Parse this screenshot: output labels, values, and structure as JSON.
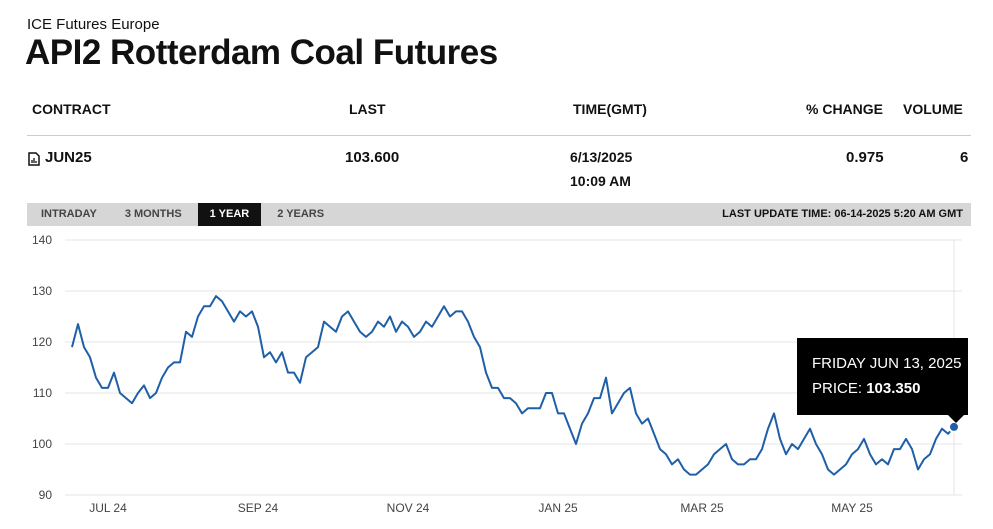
{
  "header": {
    "exchange": "ICE Futures Europe",
    "title": "API2 Rotterdam Coal Futures"
  },
  "table": {
    "columns": [
      "CONTRACT",
      "LAST",
      "TIME(GMT)",
      "% CHANGE",
      "VOLUME"
    ],
    "rows": [
      [
        "JUN25",
        "103.600",
        "6/13/2025",
        "10:09 AM",
        "0.975",
        "6"
      ]
    ]
  },
  "tabs": [
    "INTRADAY",
    "3 MONTHS",
    "1 YEAR",
    "2 YEARS"
  ],
  "active_tab": "1 YEAR",
  "last_update": "LAST UPDATE TIME: 06-14-2025 5:20 AM GMT",
  "tooltip": {
    "date": "FRIDAY JUN 13, 2025",
    "label": "PRICE:",
    "price": "103.350"
  },
  "chart_data": {
    "type": "line",
    "color": "#1f5fa8",
    "grid": true,
    "ylim": [
      90,
      140
    ],
    "yticks": [
      90,
      100,
      110,
      120,
      130,
      140
    ],
    "categories": [
      null,
      null,
      null,
      null,
      null,
      null,
      "JUL 24",
      null,
      null,
      null,
      null,
      null,
      null,
      null,
      null,
      null,
      null,
      null,
      null,
      null,
      null,
      null,
      null,
      null,
      null,
      null,
      null,
      null,
      null,
      null,
      null,
      "SEP 24",
      null,
      null,
      null,
      null,
      null,
      null,
      null,
      null,
      null,
      null,
      null,
      null,
      null,
      null,
      null,
      null,
      null,
      null,
      null,
      null,
      null,
      null,
      null,
      null,
      "NOV 24",
      null,
      null,
      null,
      null,
      null,
      null,
      null,
      null,
      null,
      null,
      null,
      null,
      null,
      null,
      null,
      null,
      null,
      null,
      null,
      null,
      null,
      null,
      null,
      null,
      "JAN 25",
      null,
      null,
      null,
      null,
      null,
      null,
      null,
      null,
      null,
      null,
      null,
      null,
      null,
      null,
      null,
      null,
      null,
      null,
      null,
      null,
      null,
      null,
      null,
      "MAR 25",
      null,
      null,
      null,
      null,
      null,
      null,
      null,
      null,
      null,
      null,
      null,
      null,
      null,
      null,
      null,
      null,
      null,
      null,
      null,
      null,
      null,
      null,
      null,
      null,
      "MAY 25",
      null,
      null,
      null,
      null,
      null,
      null,
      null,
      null,
      null,
      null,
      null,
      null,
      null,
      null,
      null,
      null,
      null
    ],
    "values": [
      119,
      123.5,
      119,
      117,
      113,
      111,
      111,
      114,
      110,
      109,
      108,
      110,
      111.5,
      109,
      110,
      113,
      115,
      116,
      116,
      122,
      121,
      125,
      127,
      127,
      129,
      128,
      126,
      124,
      126,
      125,
      126,
      123,
      117,
      118,
      116,
      118,
      114,
      114,
      112,
      117,
      118,
      119,
      124,
      123,
      122,
      125,
      126,
      124,
      122,
      121,
      122,
      124,
      123,
      125,
      122,
      124,
      123,
      121,
      122,
      124,
      123,
      125,
      127,
      125,
      126,
      126,
      124,
      121,
      119,
      114,
      111,
      111,
      109,
      109,
      108,
      106,
      107,
      107,
      107,
      110,
      110,
      106,
      106,
      103,
      100,
      104,
      106,
      109,
      109,
      113,
      106,
      108,
      110,
      111,
      106,
      104,
      105,
      102,
      99,
      98,
      96,
      97,
      95,
      94,
      94,
      95,
      96,
      98,
      99,
      100,
      97,
      96,
      96,
      97,
      97,
      99,
      103,
      106,
      101,
      98,
      100,
      99,
      101,
      103,
      100,
      98,
      95,
      94,
      95,
      96,
      98,
      99,
      101,
      98,
      96,
      97,
      96,
      99,
      99,
      101,
      99,
      95,
      97,
      98,
      101,
      103,
      102,
      103.35
    ]
  }
}
